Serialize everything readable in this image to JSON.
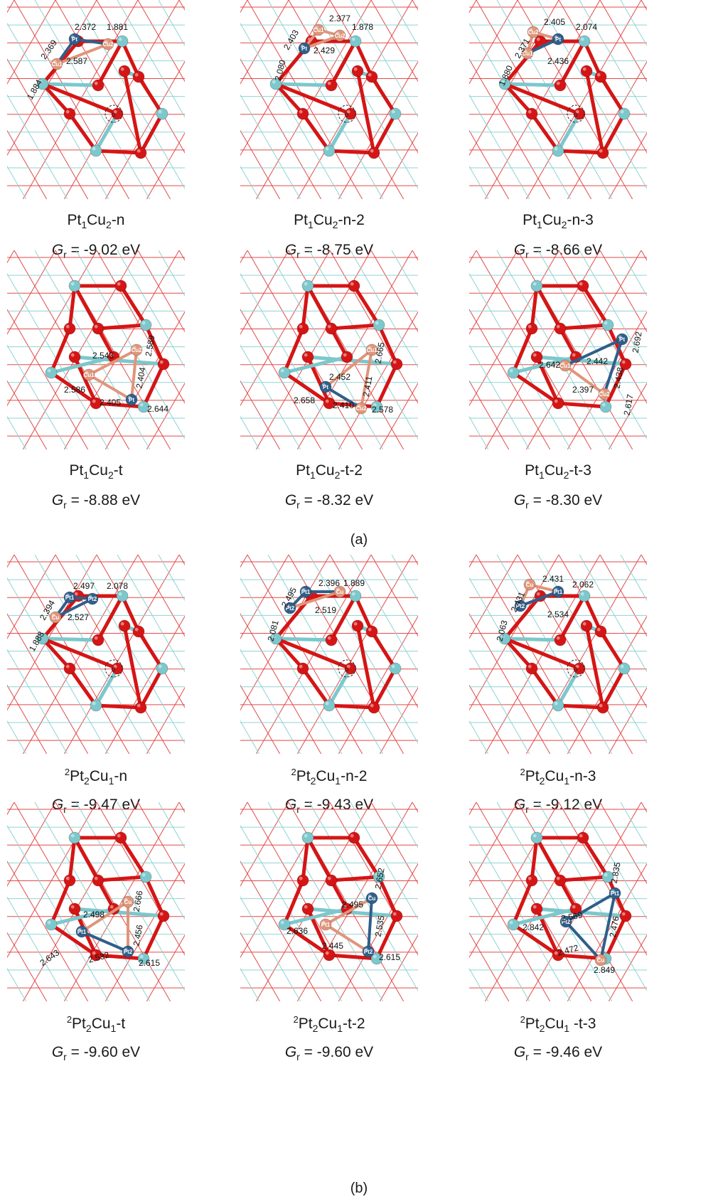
{
  "figure": {
    "label_a": "(a)",
    "label_b": "(b)",
    "energy_prefix": "G",
    "energy_subscript": "r",
    "panels": [
      {
        "superscript": "",
        "formula": [
          [
            "Pt",
            ""
          ],
          [
            "1",
            "sub"
          ],
          [
            "Cu",
            ""
          ],
          [
            "2",
            "sub"
          ],
          [
            "-n",
            ""
          ]
        ],
        "energy": "= -9.02 eV",
        "bond_labels": [
          "2.372",
          "1.881",
          "2.369",
          "2.587",
          "1.884"
        ],
        "atom_labels": [
          "Pt",
          "Cu2",
          "Cu1"
        ]
      },
      {
        "superscript": "",
        "formula": [
          [
            "Pt",
            ""
          ],
          [
            "1",
            "sub"
          ],
          [
            "Cu",
            ""
          ],
          [
            "2",
            "sub"
          ],
          [
            "-n-2",
            ""
          ]
        ],
        "energy": "= -8.75 eV",
        "bond_labels": [
          "2.377",
          "1.878",
          "2.403",
          "2.429",
          "2.080"
        ],
        "atom_labels": [
          "Cu1",
          "Cu2",
          "Pt"
        ]
      },
      {
        "superscript": "",
        "formula": [
          [
            "Pt",
            ""
          ],
          [
            "1",
            "sub"
          ],
          [
            "Cu",
            ""
          ],
          [
            "2",
            "sub"
          ],
          [
            "-n-3",
            ""
          ]
        ],
        "energy": "= -8.66 eV",
        "bond_labels": [
          "2.405",
          "2.074",
          "2.371",
          "2.436",
          "1.880"
        ],
        "atom_labels": [
          "Cu2",
          "Pt",
          "Cu1"
        ]
      },
      {
        "superscript": "",
        "formula": [
          [
            "Pt",
            ""
          ],
          [
            "1",
            "sub"
          ],
          [
            "Cu",
            ""
          ],
          [
            "2",
            "sub"
          ],
          [
            "-t",
            ""
          ]
        ],
        "energy": "= -8.88 eV",
        "bond_labels": [
          "2.543",
          "2.589",
          "2.586",
          "2.404",
          "2.405",
          "2.644"
        ],
        "atom_labels": [
          "Cu2",
          "Cu1",
          "Pt"
        ]
      },
      {
        "superscript": "",
        "formula": [
          [
            "Pt",
            ""
          ],
          [
            "1",
            "sub"
          ],
          [
            "Cu",
            ""
          ],
          [
            "2",
            "sub"
          ],
          [
            "-t-2",
            ""
          ]
        ],
        "energy": "= -8.32 eV",
        "bond_labels": [
          "2.452",
          "2.665",
          "2.658",
          "2.411",
          "2.410",
          "2.578"
        ],
        "atom_labels": [
          "Cu1",
          "Pt",
          "Cu2"
        ]
      },
      {
        "superscript": "",
        "formula": [
          [
            "Pt",
            ""
          ],
          [
            "1",
            "sub"
          ],
          [
            "Cu",
            ""
          ],
          [
            "2",
            "sub"
          ],
          [
            "-t-3",
            ""
          ]
        ],
        "energy": "= -8.30 eV",
        "bond_labels": [
          "2.692",
          "2.642",
          "2.442",
          "2.438",
          "2.397",
          "2.617"
        ],
        "atom_labels": [
          "Pt",
          "Cu1",
          "Cu2"
        ]
      },
      {
        "superscript": "2",
        "formula": [
          [
            "Pt",
            ""
          ],
          [
            "2",
            "sub"
          ],
          [
            "Cu",
            ""
          ],
          [
            "1",
            "sub"
          ],
          [
            "-n",
            ""
          ]
        ],
        "energy": "= -9.47 eV",
        "bond_labels": [
          "2.497",
          "2.078",
          "2.394",
          "2.527",
          "1.888"
        ],
        "atom_labels": [
          "Pt1",
          "Pt2",
          "Cu"
        ]
      },
      {
        "superscript": "2",
        "formula": [
          [
            "Pt",
            ""
          ],
          [
            "2",
            "sub"
          ],
          [
            "Cu",
            ""
          ],
          [
            "1",
            "sub"
          ],
          [
            "-n-2",
            ""
          ]
        ],
        "energy": "= -9.43 eV",
        "bond_labels": [
          "2.396",
          "1.889",
          "2.495",
          "2.519",
          "2.081"
        ],
        "atom_labels": [
          "Pt1",
          "Cu",
          "Pt2"
        ]
      },
      {
        "superscript": "2",
        "formula": [
          [
            "Pt",
            ""
          ],
          [
            "2",
            "sub"
          ],
          [
            "Cu",
            ""
          ],
          [
            "1",
            "sub"
          ],
          [
            "-n-3",
            ""
          ]
        ],
        "energy": "= -9.12 eV",
        "bond_labels": [
          "2.431",
          "2.062",
          "2.431",
          "2.534",
          "2.063"
        ],
        "atom_labels": [
          "Cu",
          "Pt1",
          "Pt2"
        ]
      },
      {
        "superscript": "2",
        "formula": [
          [
            "Pt",
            ""
          ],
          [
            "2",
            "sub"
          ],
          [
            "Cu",
            ""
          ],
          [
            "1",
            "sub"
          ],
          [
            "-t",
            ""
          ]
        ],
        "energy": "= -9.60 eV",
        "bond_labels": [
          "2.498",
          "2.666",
          "2.643",
          "2.456",
          "2.532",
          "2.615"
        ],
        "atom_labels": [
          "Cu",
          "Pt1",
          "Pt2"
        ]
      },
      {
        "superscript": "2",
        "formula": [
          [
            "Pt",
            ""
          ],
          [
            "2",
            "sub"
          ],
          [
            "Cu",
            ""
          ],
          [
            "1",
            "sub"
          ],
          [
            "-t-2",
            ""
          ]
        ],
        "energy": "= -9.60 eV",
        "bond_labels": [
          "2.495",
          "2.652",
          "2.636",
          "2.535",
          "2.445",
          "2.615"
        ],
        "atom_labels": [
          "Pt1",
          "Cu",
          "Pt2"
        ]
      },
      {
        "superscript": "2",
        "formula": [
          [
            "Pt",
            ""
          ],
          [
            "2",
            "sub"
          ],
          [
            "Cu",
            ""
          ],
          [
            "1",
            "sub"
          ],
          [
            " -t-3",
            ""
          ]
        ],
        "energy": "= -9.46 eV",
        "bond_labels": [
          "2.835",
          "2.842",
          "2.569",
          "2.476",
          "2.472",
          "2.849"
        ],
        "atom_labels": [
          "Pt1",
          "Pt2",
          "Cu"
        ]
      }
    ]
  },
  "colors": {
    "lattice_red": "#e24a4a",
    "lattice_cyan": "#8fd3d3",
    "oxygen": "#d51515",
    "aluminum": "#7cc8cc",
    "platinum": "#2f5f8a",
    "copper": "#e0957a"
  }
}
